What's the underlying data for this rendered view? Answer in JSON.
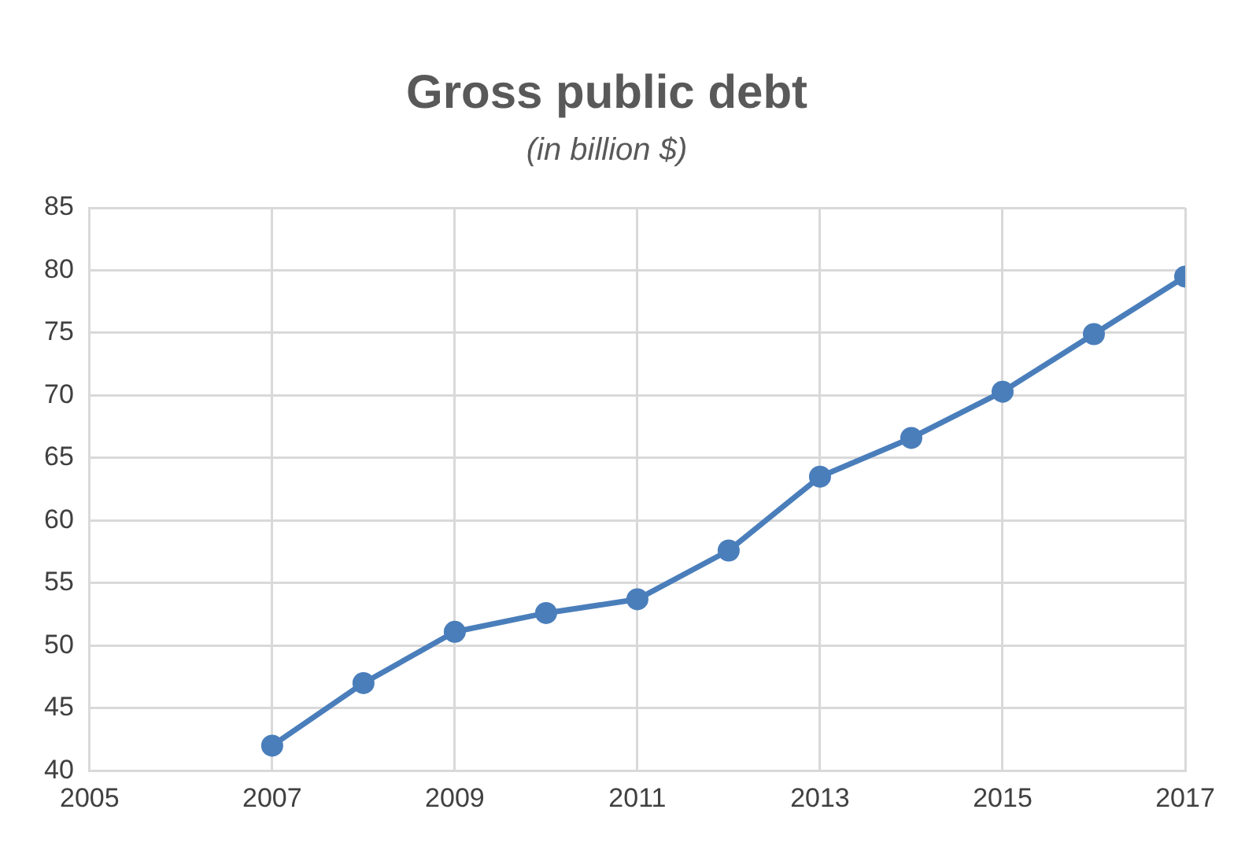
{
  "chart_data": {
    "type": "line",
    "title": "Gross public debt",
    "subtitle": "(in billion $)",
    "x": [
      2007,
      2008,
      2009,
      2010,
      2011,
      2012,
      2013,
      2014,
      2015,
      2016,
      2017
    ],
    "series": [
      {
        "color": "#4a7ebb",
        "values": [
          42.0,
          47.0,
          51.1,
          52.6,
          53.7,
          57.6,
          63.5,
          66.6,
          70.3,
          74.9,
          79.5
        ]
      }
    ],
    "xlim": [
      2005,
      2017
    ],
    "xticks": [
      2005,
      2007,
      2009,
      2011,
      2013,
      2015,
      2017
    ],
    "ylim": [
      40,
      85
    ],
    "yticks": [
      40,
      45,
      50,
      55,
      60,
      65,
      70,
      75,
      80,
      85
    ],
    "grid": true,
    "legend": false,
    "marker": "circle",
    "line_style": "solid"
  }
}
